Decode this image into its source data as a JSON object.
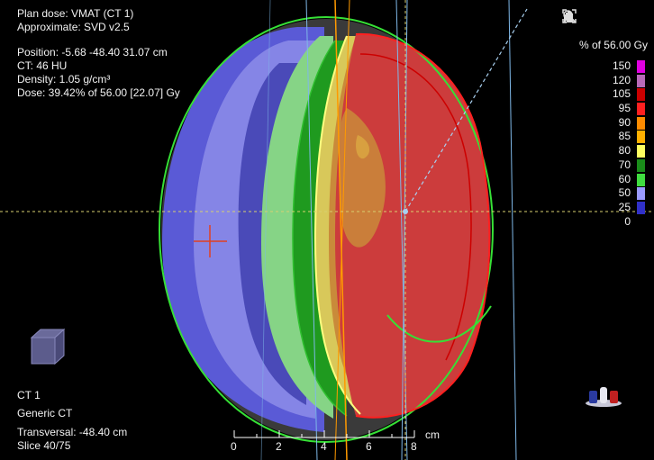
{
  "plan": {
    "title": "Plan dose: VMAT (CT 1)",
    "algorithm": "Approximate: SVD v2.5"
  },
  "probe": {
    "position": "Position: -5.68 -48.40 31.07 cm",
    "ct": "CT: 46 HU",
    "density": "Density: 1.05 g/cm³",
    "dose": "Dose: 39.42% of 56.00 [22.07] Gy"
  },
  "toolbar": {
    "icons": [
      "histogram-icon",
      "pan-hand-icon",
      "zoom-icon",
      "fullscreen-icon"
    ]
  },
  "legend": {
    "title": "% of 56.00 Gy",
    "levels": [
      {
        "label": "150",
        "color": "#e000e0"
      },
      {
        "label": "120",
        "color": "#b86ab8"
      },
      {
        "label": "105",
        "color": "#cc0000"
      },
      {
        "label": "95",
        "color": "#ff2020"
      },
      {
        "label": "90",
        "color": "#ff8c00"
      },
      {
        "label": "85",
        "color": "#ffb000"
      },
      {
        "label": "80",
        "color": "#ffff60"
      },
      {
        "label": "70",
        "color": "#1a8c1a"
      },
      {
        "label": "60",
        "color": "#40dd40"
      },
      {
        "label": "50",
        "color": "#9a9aff"
      },
      {
        "label": "25",
        "color": "#3030c8"
      },
      {
        "label": "0",
        "color": "#000000"
      }
    ]
  },
  "image_set": {
    "name": "CT 1",
    "type": "Generic CT",
    "transversal": "Transversal: -48.40 cm",
    "slice": "Slice 40/75"
  },
  "ruler": {
    "ticks": [
      "0",
      "2",
      "4",
      "6",
      "8"
    ],
    "unit": "cm"
  }
}
